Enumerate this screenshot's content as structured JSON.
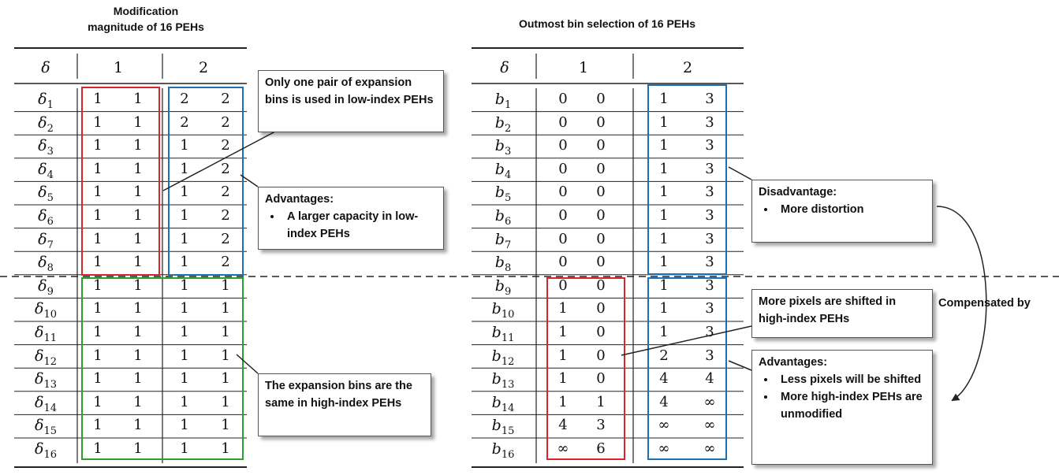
{
  "left_table": {
    "title_line1": "Modification",
    "title_line2": "magnitude of 16 PEHs",
    "head_label": "δ",
    "col_group_1": "1",
    "col_group_2": "2",
    "row_symbol": "δ",
    "rows": [
      {
        "sub": "1",
        "v": [
          "1",
          "1",
          "2",
          "2"
        ]
      },
      {
        "sub": "2",
        "v": [
          "1",
          "1",
          "2",
          "2"
        ]
      },
      {
        "sub": "3",
        "v": [
          "1",
          "1",
          "1",
          "2"
        ]
      },
      {
        "sub": "4",
        "v": [
          "1",
          "1",
          "1",
          "2"
        ]
      },
      {
        "sub": "5",
        "v": [
          "1",
          "1",
          "1",
          "2"
        ]
      },
      {
        "sub": "6",
        "v": [
          "1",
          "1",
          "1",
          "2"
        ]
      },
      {
        "sub": "7",
        "v": [
          "1",
          "1",
          "1",
          "2"
        ]
      },
      {
        "sub": "8",
        "v": [
          "1",
          "1",
          "1",
          "2"
        ]
      },
      {
        "sub": "9",
        "v": [
          "1",
          "1",
          "1",
          "1"
        ]
      },
      {
        "sub": "10",
        "v": [
          "1",
          "1",
          "1",
          "1"
        ]
      },
      {
        "sub": "11",
        "v": [
          "1",
          "1",
          "1",
          "1"
        ]
      },
      {
        "sub": "12",
        "v": [
          "1",
          "1",
          "1",
          "1"
        ]
      },
      {
        "sub": "13",
        "v": [
          "1",
          "1",
          "1",
          "1"
        ]
      },
      {
        "sub": "14",
        "v": [
          "1",
          "1",
          "1",
          "1"
        ]
      },
      {
        "sub": "15",
        "v": [
          "1",
          "1",
          "1",
          "1"
        ]
      },
      {
        "sub": "16",
        "v": [
          "1",
          "1",
          "1",
          "1"
        ]
      }
    ]
  },
  "right_table": {
    "title": "Outmost bin selection of 16 PEHs",
    "head_label": "δ",
    "col_group_1": "1",
    "col_group_2": "2",
    "row_symbol": "b",
    "rows": [
      {
        "sub": "1",
        "v": [
          "0",
          "0",
          "1",
          "3"
        ]
      },
      {
        "sub": "2",
        "v": [
          "0",
          "0",
          "1",
          "3"
        ]
      },
      {
        "sub": "3",
        "v": [
          "0",
          "0",
          "1",
          "3"
        ]
      },
      {
        "sub": "4",
        "v": [
          "0",
          "0",
          "1",
          "3"
        ]
      },
      {
        "sub": "5",
        "v": [
          "0",
          "0",
          "1",
          "3"
        ]
      },
      {
        "sub": "6",
        "v": [
          "0",
          "0",
          "1",
          "3"
        ]
      },
      {
        "sub": "7",
        "v": [
          "0",
          "0",
          "1",
          "3"
        ]
      },
      {
        "sub": "8",
        "v": [
          "0",
          "0",
          "1",
          "3"
        ]
      },
      {
        "sub": "9",
        "v": [
          "0",
          "0",
          "1",
          "3"
        ]
      },
      {
        "sub": "10",
        "v": [
          "1",
          "0",
          "1",
          "3"
        ]
      },
      {
        "sub": "11",
        "v": [
          "1",
          "0",
          "1",
          "3"
        ]
      },
      {
        "sub": "12",
        "v": [
          "1",
          "0",
          "2",
          "3"
        ]
      },
      {
        "sub": "13",
        "v": [
          "1",
          "0",
          "4",
          "4"
        ]
      },
      {
        "sub": "14",
        "v": [
          "1",
          "1",
          "4",
          "∞"
        ]
      },
      {
        "sub": "15",
        "v": [
          "4",
          "3",
          "∞",
          "∞"
        ]
      },
      {
        "sub": "16",
        "v": [
          "∞",
          "6",
          "∞",
          "∞"
        ]
      }
    ]
  },
  "callouts": {
    "one_pair": "Only one pair of expansion bins is used in low-index PEHs",
    "adv_left_title": "Advantages:",
    "adv_left_items": [
      "A larger capacity in low-index PEHs"
    ],
    "same_bins": "The  expansion bins are the same in high-index PEHs",
    "disadv_title": "Disadvantage:",
    "disadv_items": [
      "More distortion"
    ],
    "more_pixels": "More pixels are shifted in high-index PEHs",
    "adv_right_title": "Advantages:",
    "adv_right_items": [
      "Less pixels will be shifted",
      "More high-index PEHs are unmodified"
    ],
    "compensated": "Compensated by"
  },
  "colors": {
    "red_box": "#d62728",
    "blue_box": "#1f6fb5",
    "green_box": "#2ca02c",
    "rule": "#222222"
  }
}
